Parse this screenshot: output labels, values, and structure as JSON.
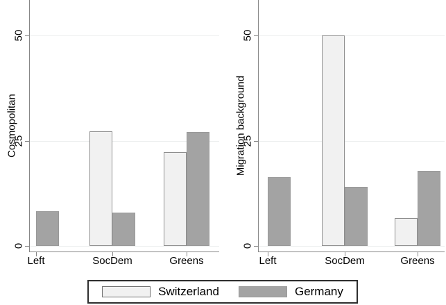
{
  "chart_data": [
    {
      "type": "bar",
      "ylabel": "Cosmopolitan",
      "categories": [
        "Left",
        "SocDem",
        "Greens"
      ],
      "yticks": [
        0,
        25,
        50
      ],
      "ylim": [
        0,
        58
      ],
      "grid": true,
      "legend_position": "bottom",
      "series": [
        {
          "name": "Switzerland",
          "values": [
            null,
            27.3,
            22.3
          ]
        },
        {
          "name": "Germany",
          "values": [
            8.3,
            8.0,
            27.1
          ]
        }
      ]
    },
    {
      "type": "bar",
      "ylabel": "Migration background",
      "categories": [
        "Left",
        "SocDem",
        "Greens"
      ],
      "yticks": [
        0,
        25,
        50
      ],
      "ylim": [
        0,
        58
      ],
      "grid": true,
      "legend_position": "bottom",
      "series": [
        {
          "name": "Switzerland",
          "values": [
            null,
            50.0,
            6.6
          ]
        },
        {
          "name": "Germany",
          "values": [
            16.4,
            14.0,
            17.9
          ]
        }
      ]
    }
  ],
  "legend": {
    "items": [
      {
        "label": "Switzerland",
        "color": "#f1f1f1",
        "border": "#6f6f6f"
      },
      {
        "label": "Germany",
        "color": "#a3a3a3",
        "border": "#9a9a9a"
      }
    ]
  },
  "colors": {
    "axis": "#878787",
    "gridline": "#edefef",
    "background": "#ffffff",
    "switzerland_fill": "#f1f1f1",
    "switzerland_border": "#8e8e8e",
    "germany_fill": "#a3a3a3",
    "germany_border": "#999999",
    "text": "#000000"
  }
}
